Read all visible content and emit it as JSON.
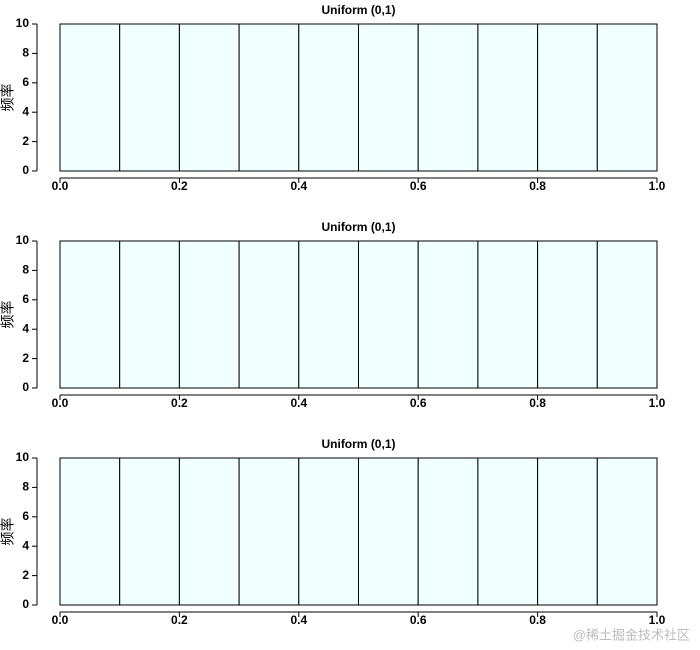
{
  "chart_data": [
    {
      "type": "histogram",
      "title": "Uniform (0,1)",
      "y_label": "频率",
      "color": "#f0ffff",
      "edge_color": "#000000",
      "bins": [
        0,
        0.1,
        0.2,
        0.3,
        0.4,
        0.5,
        0.6,
        0.7,
        0.8,
        0.9,
        1
      ],
      "values": [
        10,
        10,
        10,
        10,
        10,
        10,
        10,
        10,
        10,
        10
      ],
      "xlim": [
        0,
        1
      ],
      "xticks": [
        {
          "value": 0,
          "label": "0.0"
        },
        0.2,
        0.4,
        0.6,
        0.8,
        {
          "value": 1,
          "label": "1.0"
        }
      ],
      "ylim": [
        0,
        10
      ],
      "yticks": [
        0,
        2,
        4,
        6,
        8,
        10
      ]
    },
    {
      "type": "histogram",
      "title": "Uniform (0,1)",
      "y_label": "频率",
      "color": "#f0ffff",
      "edge_color": "#000000",
      "bins": [
        0,
        0.1,
        0.2,
        0.3,
        0.4,
        0.5,
        0.6,
        0.7,
        0.8,
        0.9,
        1
      ],
      "values": [
        10,
        10,
        10,
        10,
        10,
        10,
        10,
        10,
        10,
        10
      ],
      "xlim": [
        0,
        1
      ],
      "xticks": [
        {
          "value": 0,
          "label": "0.0"
        },
        0.2,
        0.4,
        0.6,
        0.8,
        {
          "value": 1,
          "label": "1.0"
        }
      ],
      "ylim": [
        0,
        10
      ],
      "yticks": [
        0,
        2,
        4,
        6,
        8,
        10
      ]
    },
    {
      "type": "histogram",
      "title": "Uniform (0,1)",
      "y_label": "频率",
      "color": "#f0ffff",
      "edge_color": "#000000",
      "bins": [
        0,
        0.1,
        0.2,
        0.3,
        0.4,
        0.5,
        0.6,
        0.7,
        0.8,
        0.9,
        1
      ],
      "values": [
        10,
        10,
        10,
        10,
        10,
        10,
        10,
        10,
        10,
        10
      ],
      "xlim": [
        0,
        1
      ],
      "xticks": [
        {
          "value": 0,
          "label": "0.0"
        },
        0.2,
        0.4,
        0.6,
        0.8,
        {
          "value": 1,
          "label": "1.0"
        }
      ],
      "ylim": [
        0,
        10
      ],
      "yticks": [
        0,
        2,
        4,
        6,
        8,
        10
      ]
    }
  ],
  "watermark": "@稀土掘金技术社区"
}
